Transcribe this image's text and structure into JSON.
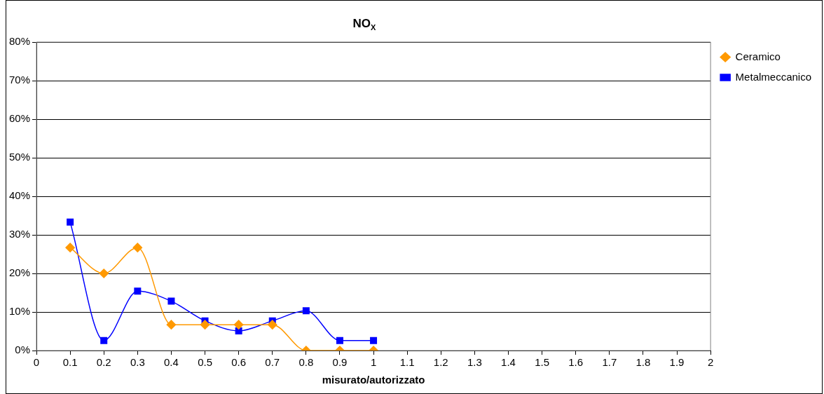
{
  "chart_data": {
    "type": "line",
    "title": "NO$_{X}$",
    "xlabel": "misurato/autorizzato",
    "x": [
      0.1,
      0.2,
      0.3,
      0.4,
      0.5,
      0.6,
      0.7,
      0.8,
      0.9,
      1
    ],
    "series": [
      {
        "name": "Ceramico",
        "color": "#ff9900",
        "marker": "diamond",
        "values": [
          26.7,
          20,
          26.7,
          6.7,
          6.7,
          6.7,
          6.7,
          0,
          0,
          0
        ]
      },
      {
        "name": "Metalmeccanico",
        "color": "#0000ff",
        "marker": "square",
        "values": [
          33.3,
          2.6,
          15.4,
          12.8,
          7.7,
          5.1,
          7.7,
          10.3,
          2.6,
          2.6
        ]
      }
    ],
    "xlim": [
      0,
      2
    ],
    "xticks": [
      0,
      0.1,
      0.2,
      0.3,
      0.4,
      0.5,
      0.6,
      0.7,
      0.8,
      0.9,
      1,
      1.1,
      1.2,
      1.3,
      1.4,
      1.5,
      1.6,
      1.7,
      1.8,
      1.9,
      2
    ],
    "ylim": [
      0,
      80
    ],
    "yticks": [
      {
        "value": 0,
        "label": "0%"
      },
      {
        "value": 10,
        "label": "10%"
      },
      {
        "value": 20,
        "label": "20%"
      },
      {
        "value": 30,
        "label": "30%"
      },
      {
        "value": 40,
        "label": "40%"
      },
      {
        "value": 50,
        "label": "50%"
      },
      {
        "value": 60,
        "label": "60%"
      },
      {
        "value": 70,
        "label": "70%"
      },
      {
        "value": 80,
        "label": "80%"
      }
    ],
    "grid": "y",
    "legend": "right",
    "line_style": "solid"
  }
}
